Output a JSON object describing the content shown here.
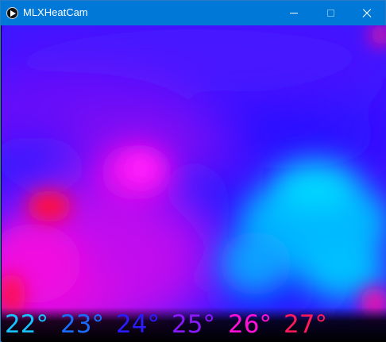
{
  "window": {
    "title": "MLXHeatCam",
    "icon": "play-circle-icon",
    "controls": [
      "minimize-icon",
      "maximize-icon",
      "close-icon"
    ],
    "titlebar_color": "#0078d7"
  },
  "heatmap": {
    "palette": {
      "cold": "#00c8ff",
      "cool": "#1a10ff",
      "mid": "#7a10ff",
      "warm": "#ff00e0",
      "hot": "#ff0040"
    }
  },
  "scale": {
    "labels": [
      {
        "text": "22°",
        "color": "#18c4ff"
      },
      {
        "text": "23°",
        "color": "#1a6cff"
      },
      {
        "text": "24°",
        "color": "#2a1cff"
      },
      {
        "text": "25°",
        "color": "#8a18ff"
      },
      {
        "text": "26°",
        "color": "#ff10d8"
      },
      {
        "text": "27°",
        "color": "#ff1a5a"
      }
    ]
  }
}
